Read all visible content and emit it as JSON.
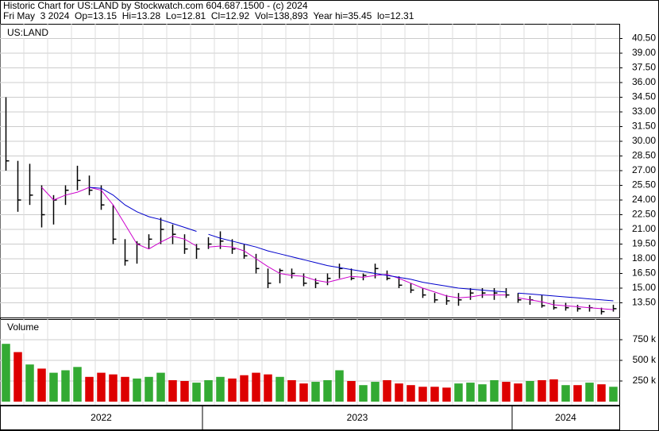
{
  "chart_data": {
    "type": "ohlc",
    "title": "Historic Chart for US:LAND by Stockwatch.com 604.687.1500 - (c) 2024",
    "subtitle": "Fri May  3 2024  Op=13.15  Hi=13.28  Lo=12.81  Cl=12.92  Vol=138,893  Year hi=35.45  lo=12.31",
    "symbol": "US:LAND",
    "volume_label": "Volume",
    "ylim": [
      12,
      42
    ],
    "yticks": [
      {
        "value": 13.5,
        "label": "13.50"
      },
      {
        "value": 15,
        "label": "15.00"
      },
      {
        "value": 16.5,
        "label": "16.50"
      },
      {
        "value": 18,
        "label": "18.00"
      },
      {
        "value": 19.5,
        "label": "19.50"
      },
      {
        "value": 21,
        "label": "21.00"
      },
      {
        "value": 22.5,
        "label": "22.50"
      },
      {
        "value": 24,
        "label": "24.00"
      },
      {
        "value": 25.5,
        "label": "25.50"
      },
      {
        "value": 27,
        "label": "27.00"
      },
      {
        "value": 28.5,
        "label": "28.50"
      },
      {
        "value": 30,
        "label": "30.00"
      },
      {
        "value": 31.5,
        "label": "31.50"
      },
      {
        "value": 33,
        "label": "33.00"
      },
      {
        "value": 34.5,
        "label": "34.50"
      },
      {
        "value": 36,
        "label": "36.00"
      },
      {
        "value": 37.5,
        "label": "37.50"
      },
      {
        "value": 39,
        "label": "39.00"
      },
      {
        "value": 40.5,
        "label": "40.50"
      }
    ],
    "y2lim": [
      0,
      1000000
    ],
    "y2ticks": [
      {
        "value": 250000,
        "label": "250 k"
      },
      {
        "value": 500000,
        "label": "500 k"
      },
      {
        "value": 750000,
        "label": "750 k"
      }
    ],
    "grid": true,
    "colors": {
      "bar": "#000000",
      "ma_fast": "#cc00cc",
      "ma_slow": "#0000cc",
      "up": "#33aa33",
      "down": "#dd0000"
    },
    "periods": [
      {
        "label": "2022",
        "high": [
          34.5,
          28,
          27.7,
          25.5,
          24.5,
          25.5,
          27.5,
          26.5,
          25.5,
          23.5,
          20,
          19.8,
          20.5,
          22.2,
          21.5,
          20.5,
          19.5
        ],
        "low": [
          27,
          22.8,
          23.5,
          21.2,
          21.5,
          23.5,
          25,
          24.5,
          23,
          19.5,
          17.3,
          17.5,
          19,
          19.5,
          19.5,
          18.5,
          18
        ],
        "close": [
          28,
          24,
          24.5,
          22.5,
          24,
          25,
          26,
          25,
          23.5,
          20,
          17.8,
          19.5,
          20,
          21,
          20.5,
          19,
          19
        ],
        "volume": [
          700000,
          600000,
          450000,
          400000,
          350000,
          380000,
          420000,
          300000,
          350000,
          330000,
          300000,
          280000,
          300000,
          350000,
          260000,
          250000,
          230000
        ],
        "ma_fast": [
          null,
          null,
          null,
          25.3,
          24,
          24.5,
          24.8,
          25.3,
          25,
          23.5,
          21.5,
          19.5,
          19,
          19.7,
          20.3,
          20,
          19.3
        ],
        "ma_slow": [
          null,
          null,
          null,
          null,
          null,
          null,
          null,
          25.3,
          25.2,
          24.5,
          23.5,
          22.8,
          22.3,
          22,
          21.6,
          21.2,
          20.8
        ]
      },
      {
        "label": "2023",
        "high": [
          20.2,
          20.8,
          20,
          19.5,
          18.5,
          17,
          17,
          17,
          16.5,
          16,
          16.5,
          17.5,
          17,
          16.5,
          17.5,
          16.8,
          16.2,
          15.5,
          15,
          14.5,
          14.3,
          14.5,
          15,
          15,
          15,
          15
        ],
        "low": [
          19,
          19,
          18.5,
          18,
          16.5,
          15,
          15.5,
          16,
          15.2,
          15,
          15.3,
          16,
          15.8,
          15.8,
          16,
          15.8,
          15,
          14.5,
          14,
          13.5,
          13.3,
          13.2,
          13.8,
          14,
          13.8,
          14
        ],
        "close": [
          19.5,
          19.8,
          19,
          18.3,
          17,
          15.5,
          16.8,
          16.5,
          15.5,
          15.5,
          16,
          17,
          16,
          16.3,
          17,
          16,
          15.3,
          14.8,
          14.3,
          13.8,
          13.7,
          13.8,
          14.5,
          14.5,
          14.5,
          14.3
        ],
        "volume": [
          260000,
          300000,
          280000,
          320000,
          350000,
          330000,
          300000,
          260000,
          220000,
          240000,
          260000,
          380000,
          250000,
          200000,
          240000,
          260000,
          220000,
          200000,
          180000,
          180000,
          170000,
          220000,
          230000,
          210000,
          260000,
          240000
        ],
        "ma_fast": [
          19.2,
          19.3,
          19.2,
          18.8,
          18,
          17.2,
          16.5,
          16.3,
          16.2,
          15.8,
          15.6,
          15.9,
          16.2,
          16.1,
          16.3,
          16.4,
          16,
          15.5,
          15,
          14.6,
          14.2,
          14,
          14.1,
          14.3,
          14.3,
          14.3
        ],
        "ma_slow": [
          20.5,
          20.1,
          19.8,
          19.5,
          19.2,
          18.8,
          18.5,
          18.2,
          17.9,
          17.6,
          17.3,
          17.1,
          16.9,
          16.7,
          16.5,
          16.3,
          16.1,
          15.9,
          15.6,
          15.4,
          15.2,
          15,
          14.9,
          14.8,
          14.7,
          14.6
        ]
      },
      {
        "label": "2024",
        "high": [
          14.5,
          14.2,
          14.3,
          13.8,
          13.5,
          13.3,
          13.3,
          13,
          13.3
        ],
        "low": [
          13.5,
          13.3,
          13,
          12.8,
          12.7,
          12.6,
          12.6,
          12.3,
          12.6
        ],
        "close": [
          13.8,
          13.8,
          13.2,
          13,
          13,
          12.9,
          13,
          12.6,
          12.9
        ],
        "volume": [
          220000,
          250000,
          260000,
          270000,
          200000,
          200000,
          230000,
          210000,
          180000
        ],
        "ma_fast": [
          14,
          13.8,
          13.6,
          13.3,
          13.2,
          13.1,
          13,
          12.9,
          12.8
        ],
        "ma_slow": [
          14.5,
          14.4,
          14.3,
          14.2,
          14.1,
          14,
          13.9,
          13.8,
          13.7
        ]
      }
    ]
  }
}
